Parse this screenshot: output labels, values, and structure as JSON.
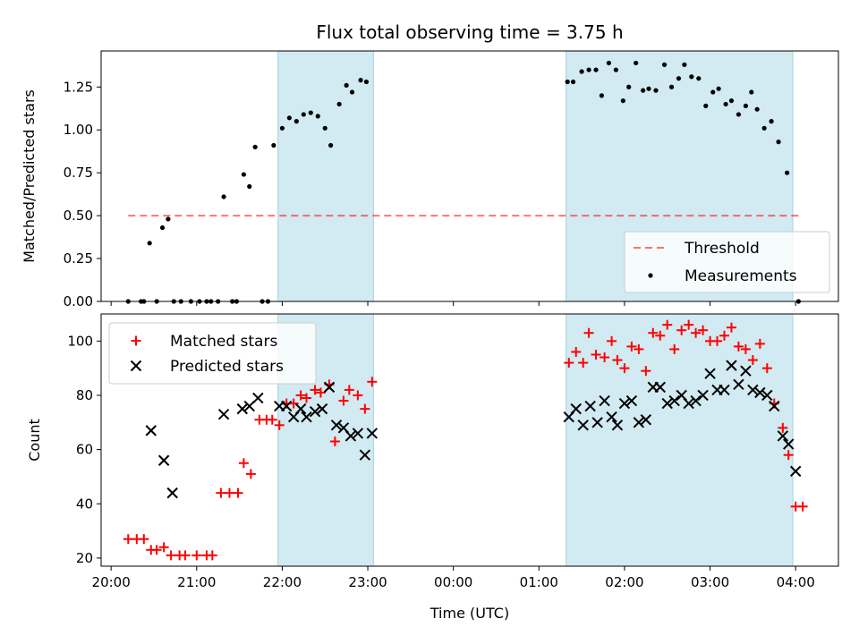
{
  "colors": {
    "observing_window": "#add8e6",
    "threshold": "#ff0000",
    "measurements": "#000000",
    "matched": "#ff0000",
    "predicted": "#000000"
  },
  "chart_data": [
    {
      "type": "scatter",
      "title": "Flux total observing time = 3.75 h",
      "xlabel": "",
      "ylabel": "Matched/Predicted stars",
      "xlim": [
        "19:53",
        "04:30"
      ],
      "ylim": [
        0,
        1.46
      ],
      "xticks": [
        "20:00",
        "21:00",
        "22:00",
        "23:00",
        "00:00",
        "01:00",
        "02:00",
        "03:00",
        "04:00"
      ],
      "xtick_labels_shown": false,
      "yticks": [
        "0.00",
        "0.25",
        "0.50",
        "0.75",
        "1.00",
        "1.25"
      ],
      "grid": false,
      "legend_position": "lower-right",
      "observing_windows": [
        {
          "start": "21:57",
          "end": "23:04"
        },
        {
          "start": "01:19",
          "end": "03:58"
        }
      ],
      "threshold": {
        "name": "Threshold",
        "value": 0.5,
        "x_start": "20:12",
        "x_end": "04:05",
        "style": "dashed"
      },
      "series": [
        {
          "name": "Measurements",
          "marker": "dot",
          "points": [
            [
              "20:12",
              0.0
            ],
            [
              "20:21",
              0.0
            ],
            [
              "20:23",
              0.0
            ],
            [
              "20:27",
              0.34
            ],
            [
              "20:32",
              0.0
            ],
            [
              "20:36",
              0.43
            ],
            [
              "20:40",
              0.48
            ],
            [
              "20:44",
              0.0
            ],
            [
              "20:49",
              0.0
            ],
            [
              "20:56",
              0.0
            ],
            [
              "21:02",
              0.0
            ],
            [
              "21:07",
              0.0
            ],
            [
              "21:10",
              0.0
            ],
            [
              "21:15",
              0.0
            ],
            [
              "21:19",
              0.61
            ],
            [
              "21:25",
              0.0
            ],
            [
              "21:28",
              0.0
            ],
            [
              "21:33",
              0.74
            ],
            [
              "21:37",
              0.67
            ],
            [
              "21:41",
              0.9
            ],
            [
              "21:46",
              0.0
            ],
            [
              "21:50",
              0.0
            ],
            [
              "21:54",
              0.91
            ],
            [
              "22:00",
              1.01
            ],
            [
              "22:05",
              1.07
            ],
            [
              "22:10",
              1.05
            ],
            [
              "22:15",
              1.09
            ],
            [
              "22:20",
              1.1
            ],
            [
              "22:25",
              1.08
            ],
            [
              "22:30",
              1.01
            ],
            [
              "22:34",
              0.91
            ],
            [
              "22:40",
              1.15
            ],
            [
              "22:45",
              1.26
            ],
            [
              "22:49",
              1.22
            ],
            [
              "22:55",
              1.29
            ],
            [
              "22:59",
              1.28
            ],
            [
              "01:20",
              1.28
            ],
            [
              "01:24",
              1.28
            ],
            [
              "01:30",
              1.34
            ],
            [
              "01:35",
              1.35
            ],
            [
              "01:40",
              1.35
            ],
            [
              "01:44",
              1.2
            ],
            [
              "01:49",
              1.39
            ],
            [
              "01:54",
              1.35
            ],
            [
              "01:59",
              1.17
            ],
            [
              "02:03",
              1.25
            ],
            [
              "02:08",
              1.39
            ],
            [
              "02:13",
              1.23
            ],
            [
              "02:17",
              1.24
            ],
            [
              "02:22",
              1.23
            ],
            [
              "02:28",
              1.38
            ],
            [
              "02:33",
              1.25
            ],
            [
              "02:38",
              1.3
            ],
            [
              "02:42",
              1.38
            ],
            [
              "02:47",
              1.31
            ],
            [
              "02:52",
              1.3
            ],
            [
              "02:57",
              1.14
            ],
            [
              "03:02",
              1.22
            ],
            [
              "03:06",
              1.24
            ],
            [
              "03:11",
              1.15
            ],
            [
              "03:15",
              1.17
            ],
            [
              "03:20",
              1.09
            ],
            [
              "03:25",
              1.14
            ],
            [
              "03:29",
              1.22
            ],
            [
              "03:33",
              1.12
            ],
            [
              "03:38",
              1.01
            ],
            [
              "03:43",
              1.05
            ],
            [
              "03:48",
              0.93
            ],
            [
              "03:54",
              0.75
            ],
            [
              "04:02",
              0.0
            ]
          ]
        }
      ]
    },
    {
      "type": "scatter",
      "title": "",
      "xlabel": "Time (UTC)",
      "ylabel": "Count",
      "xlim": [
        "19:53",
        "04:30"
      ],
      "ylim": [
        17,
        110
      ],
      "xticks": [
        "20:00",
        "21:00",
        "22:00",
        "23:00",
        "00:00",
        "01:00",
        "02:00",
        "03:00",
        "04:00"
      ],
      "yticks": [
        "20",
        "40",
        "60",
        "80",
        "100"
      ],
      "grid": false,
      "legend_position": "upper-left",
      "observing_windows": [
        {
          "start": "21:57",
          "end": "23:04"
        },
        {
          "start": "01:19",
          "end": "03:58"
        }
      ],
      "series": [
        {
          "name": "Matched stars",
          "marker": "plus",
          "points": [
            [
              "20:12",
              27
            ],
            [
              "20:18",
              27
            ],
            [
              "20:23",
              27
            ],
            [
              "20:28",
              23
            ],
            [
              "20:32",
              23
            ],
            [
              "20:37",
              24
            ],
            [
              "20:42",
              21
            ],
            [
              "20:48",
              21
            ],
            [
              "20:52",
              21
            ],
            [
              "21:00",
              21
            ],
            [
              "21:07",
              21
            ],
            [
              "21:11",
              21
            ],
            [
              "21:17",
              44
            ],
            [
              "21:23",
              44
            ],
            [
              "21:29",
              44
            ],
            [
              "21:33",
              55
            ],
            [
              "21:38",
              51
            ],
            [
              "21:44",
              71
            ],
            [
              "21:49",
              71
            ],
            [
              "21:53",
              71
            ],
            [
              "21:58",
              69
            ],
            [
              "22:03",
              77
            ],
            [
              "22:08",
              77
            ],
            [
              "22:13",
              80
            ],
            [
              "22:17",
              79
            ],
            [
              "22:23",
              82
            ],
            [
              "22:27",
              81
            ],
            [
              "22:33",
              84
            ],
            [
              "22:37",
              63
            ],
            [
              "22:43",
              78
            ],
            [
              "22:47",
              82
            ],
            [
              "22:53",
              80
            ],
            [
              "22:58",
              75
            ],
            [
              "23:03",
              85
            ],
            [
              "01:21",
              92
            ],
            [
              "01:26",
              96
            ],
            [
              "01:31",
              92
            ],
            [
              "01:35",
              103
            ],
            [
              "01:40",
              95
            ],
            [
              "01:46",
              94
            ],
            [
              "01:51",
              100
            ],
            [
              "01:55",
              93
            ],
            [
              "02:00",
              90
            ],
            [
              "02:05",
              98
            ],
            [
              "02:10",
              97
            ],
            [
              "02:15",
              89
            ],
            [
              "02:20",
              103
            ],
            [
              "02:25",
              102
            ],
            [
              "02:30",
              106
            ],
            [
              "02:35",
              97
            ],
            [
              "02:40",
              104
            ],
            [
              "02:45",
              106
            ],
            [
              "02:50",
              103
            ],
            [
              "02:55",
              104
            ],
            [
              "03:00",
              100
            ],
            [
              "03:05",
              100
            ],
            [
              "03:10",
              102
            ],
            [
              "03:15",
              105
            ],
            [
              "03:20",
              98
            ],
            [
              "03:25",
              97
            ],
            [
              "03:30",
              93
            ],
            [
              "03:35",
              99
            ],
            [
              "03:40",
              90
            ],
            [
              "03:45",
              77
            ],
            [
              "03:51",
              68
            ],
            [
              "03:55",
              58
            ],
            [
              "04:00",
              39
            ],
            [
              "04:05",
              39
            ]
          ]
        },
        {
          "name": "Predicted stars",
          "marker": "x",
          "points": [
            [
              "20:28",
              67
            ],
            [
              "20:37",
              56
            ],
            [
              "20:43",
              44
            ],
            [
              "21:19",
              73
            ],
            [
              "21:32",
              75
            ],
            [
              "21:37",
              76
            ],
            [
              "21:43",
              79
            ],
            [
              "21:58",
              76
            ],
            [
              "22:03",
              76
            ],
            [
              "22:08",
              72
            ],
            [
              "22:13",
              75
            ],
            [
              "22:17",
              72
            ],
            [
              "22:23",
              74
            ],
            [
              "22:28",
              75
            ],
            [
              "22:33",
              83
            ],
            [
              "22:38",
              69
            ],
            [
              "22:43",
              68
            ],
            [
              "22:48",
              65
            ],
            [
              "22:53",
              66
            ],
            [
              "22:58",
              58
            ],
            [
              "23:03",
              66
            ],
            [
              "01:21",
              72
            ],
            [
              "01:26",
              75
            ],
            [
              "01:31",
              69
            ],
            [
              "01:36",
              76
            ],
            [
              "01:41",
              70
            ],
            [
              "01:46",
              78
            ],
            [
              "01:51",
              72
            ],
            [
              "01:55",
              69
            ],
            [
              "02:00",
              77
            ],
            [
              "02:05",
              78
            ],
            [
              "02:10",
              70
            ],
            [
              "02:15",
              71
            ],
            [
              "02:20",
              83
            ],
            [
              "02:25",
              83
            ],
            [
              "02:30",
              77
            ],
            [
              "02:35",
              78
            ],
            [
              "02:40",
              80
            ],
            [
              "02:45",
              77
            ],
            [
              "02:50",
              78
            ],
            [
              "02:55",
              80
            ],
            [
              "03:00",
              88
            ],
            [
              "03:05",
              82
            ],
            [
              "03:10",
              82
            ],
            [
              "03:15",
              91
            ],
            [
              "03:20",
              84
            ],
            [
              "03:25",
              89
            ],
            [
              "03:30",
              82
            ],
            [
              "03:35",
              81
            ],
            [
              "03:40",
              80
            ],
            [
              "03:45",
              76
            ],
            [
              "03:51",
              65
            ],
            [
              "03:55",
              62
            ],
            [
              "04:00",
              52
            ]
          ]
        }
      ]
    }
  ]
}
